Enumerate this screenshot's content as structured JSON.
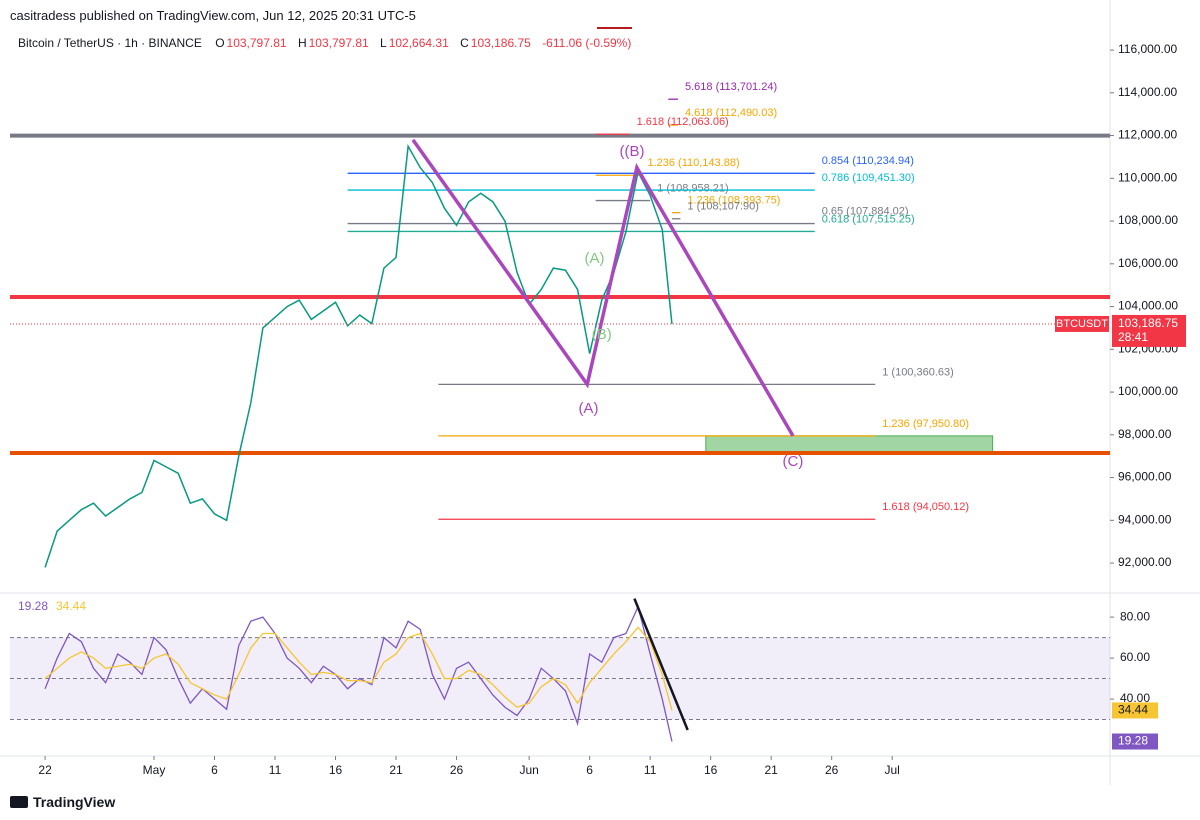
{
  "chart_data": [
    {
      "type": "line",
      "publisher": "casitradess published on TradingView.com, Jun 12, 2025 20:31 UTC-5",
      "title": "Bitcoin / TetherUS · 1h · BINANCE",
      "ohlc": [
        {
          "key": "O",
          "label": "103,797.81"
        },
        {
          "key": "H",
          "label": "103,797.81"
        },
        {
          "key": "L",
          "label": "102,664.31"
        },
        {
          "key": "C",
          "label": "103,186.75"
        }
      ],
      "change": "-611.06 (-0.59%)",
      "color": "#089981",
      "x": [
        0,
        1,
        2,
        3,
        4,
        5,
        6,
        7,
        8,
        9,
        10,
        11,
        12,
        13,
        14,
        15,
        16,
        17,
        18,
        19,
        20,
        21,
        22,
        23,
        24,
        25,
        26,
        27,
        28,
        29,
        30,
        31,
        32,
        33,
        34,
        35,
        36,
        37,
        38,
        39,
        40,
        41,
        42,
        43,
        44,
        45,
        46,
        47,
        48,
        49,
        50,
        51,
        51.8
      ],
      "values": [
        91800,
        93500,
        94000,
        94500,
        94800,
        94200,
        94600,
        95000,
        95300,
        96800,
        96500,
        96200,
        94800,
        95000,
        94300,
        94000,
        97000,
        99500,
        103000,
        103500,
        104000,
        104300,
        103400,
        103800,
        104200,
        103100,
        103600,
        103200,
        105800,
        106300,
        111500,
        110500,
        109800,
        108600,
        107800,
        108900,
        109300,
        108900,
        108000,
        105600,
        104100,
        104800,
        105800,
        105700,
        104800,
        101800,
        104300,
        105600,
        107500,
        110300,
        109200,
        107600,
        103186.75
      ],
      "xlim": [
        -2.9,
        88
      ],
      "xticks": [
        {
          "value": 0,
          "label": "22"
        },
        {
          "value": 9,
          "label": "May"
        },
        {
          "value": 14,
          "label": "6"
        },
        {
          "value": 19,
          "label": "11"
        },
        {
          "value": 24,
          "label": "16"
        },
        {
          "value": 29,
          "label": "21"
        },
        {
          "value": 34,
          "label": "26"
        },
        {
          "value": 40,
          "label": "Jun"
        },
        {
          "value": 45,
          "label": "6"
        },
        {
          "value": 50,
          "label": "11"
        },
        {
          "value": 55,
          "label": "16"
        },
        {
          "value": 60,
          "label": "21"
        },
        {
          "value": 65,
          "label": "26"
        },
        {
          "value": 70,
          "label": "Jul"
        }
      ],
      "ylim": [
        90740,
        117500
      ],
      "yticks": [
        {
          "value": 92000,
          "label": "92,000.00"
        },
        {
          "value": 94000,
          "label": "94,000.00"
        },
        {
          "value": 96000,
          "label": "96,000.00"
        },
        {
          "value": 98000,
          "label": "98,000.00"
        },
        {
          "value": 100000,
          "label": "100,000.00"
        },
        {
          "value": 102000,
          "label": "102,000.00"
        },
        {
          "value": 104000,
          "label": "104,000.00"
        },
        {
          "value": 106000,
          "label": "106,000.00"
        },
        {
          "value": 108000,
          "label": "108,000.00"
        },
        {
          "value": 110000,
          "label": "110,000.00"
        },
        {
          "value": 112000,
          "label": "112,000.00"
        },
        {
          "value": 114000,
          "label": "114,000.00"
        },
        {
          "value": 116000,
          "label": "116,000.00"
        }
      ],
      "last": {
        "value": 103186.75,
        "label": "103,186.75",
        "symbol": "BTCUSDT",
        "countdown": "28:41",
        "color": "#f23645"
      },
      "hlines": [
        {
          "value": 112000,
          "color": "#787b86",
          "width": 4
        },
        {
          "value": 104450,
          "color": "#f23645",
          "width": 4
        },
        {
          "value": 97150,
          "color": "#e65100",
          "width": 4
        }
      ],
      "levels": [
        {
          "label": "5.618 (113,701.24)",
          "value": 113701.24,
          "color": "#9c27b0",
          "x": [
            51.5,
            52.3
          ]
        },
        {
          "label": "4.618 (112,490.03)",
          "value": 112490.03,
          "color": "#f7a600",
          "x": [
            51.5,
            52.3
          ]
        },
        {
          "label": "1.618 (112,063.06)",
          "value": 112063.06,
          "color": "#f23645",
          "x": [
            45.5,
            48.3
          ]
        },
        {
          "label": "1.236 (110,143.88)",
          "value": 110143.88,
          "color": "#f7a600",
          "x": [
            45.5,
            49.2
          ]
        },
        {
          "label": "1 (108,958.21)",
          "value": 108958.21,
          "color": "#787b86",
          "x": [
            45.5,
            50.0
          ]
        },
        {
          "label": "1.236 (108,393.75)",
          "value": 108393.75,
          "color": "#f7a600",
          "x": [
            51.8,
            52.5
          ]
        },
        {
          "label": "1 (108,107.90)",
          "value": 108107.9,
          "color": "#787b86",
          "x": [
            51.8,
            52.5
          ]
        },
        {
          "label": "0.854 (110,234.94)",
          "value": 110234.94,
          "color": "#2962ff",
          "x": [
            25.0,
            63.6
          ]
        },
        {
          "label": "0.786 (109,451.30)",
          "value": 109451.3,
          "color": "#00bcd4",
          "x": [
            25.0,
            63.6
          ]
        },
        {
          "label": "0.65 (107,884.02)",
          "value": 107884.02,
          "color": "#787b86",
          "x": [
            25.0,
            63.6
          ]
        },
        {
          "label": "0.618 (107,515.25)",
          "value": 107515.25,
          "color": "#22ab94",
          "x": [
            25.0,
            63.6
          ]
        },
        {
          "label": "1 (100,360.63)",
          "value": 100360.63,
          "color": "#787b86",
          "x": [
            32.5,
            68.6
          ]
        },
        {
          "label": "1.236 (97,950.80)",
          "value": 97950.8,
          "color": "#f7a600",
          "x": [
            32.5,
            68.6
          ]
        },
        {
          "label": "1.618 (94,050.12)",
          "value": 94050.12,
          "color": "#f23645",
          "x": [
            32.5,
            68.6
          ]
        }
      ],
      "zone": {
        "x": [
          54.6,
          78.3
        ],
        "values": [
          97100,
          97950
        ],
        "color": "#81c784"
      },
      "wave": {
        "color": "#ab47bc",
        "x": [
          30.4,
          44.8,
          48.9,
          61.8
        ],
        "values": [
          111800,
          100360,
          110500,
          97950
        ]
      },
      "wave_labels": [
        {
          "label": "(A)",
          "x": 44.9,
          "value": 99205,
          "color": "#ab47bc"
        },
        {
          "label": "(C)",
          "x": 61.8,
          "value": 96725,
          "color": "#ab47bc"
        },
        {
          "label": "((B)",
          "x": 48.5,
          "value": 111230,
          "color": "#ab47bc"
        },
        {
          "label": "(A)",
          "x": 45.4,
          "value": 106220,
          "color": "#81c784"
        },
        {
          "label": "(B)",
          "x": 46.0,
          "value": 102660,
          "color": "#81c784"
        }
      ]
    },
    {
      "type": "line",
      "xlim": [
        -2.9,
        88
      ],
      "ylim": [
        12.7,
        89.8
      ],
      "yticks": [
        {
          "value": 40,
          "label": "40.00"
        },
        {
          "value": 60,
          "label": "60.00"
        },
        {
          "value": 80,
          "label": "80.00"
        }
      ],
      "band": [
        30,
        70
      ],
      "mid": 50,
      "x": [
        0,
        1,
        2,
        3,
        4,
        5,
        6,
        7,
        8,
        9,
        10,
        11,
        12,
        13,
        14,
        15,
        16,
        17,
        18,
        19,
        20,
        21,
        22,
        23,
        24,
        25,
        26,
        27,
        28,
        29,
        30,
        31,
        32,
        33,
        34,
        35,
        36,
        37,
        38,
        39,
        40,
        41,
        42,
        43,
        44,
        45,
        46,
        47,
        48,
        49,
        50,
        51,
        51.8
      ],
      "series": [
        {
          "color": "#7e57c2",
          "values": [
            45,
            60,
            72,
            68,
            55,
            48,
            62,
            58,
            52,
            70,
            64,
            50,
            38,
            45,
            40,
            35,
            66,
            78,
            80,
            72,
            60,
            55,
            48,
            56,
            52,
            45,
            50,
            47,
            70,
            65,
            78,
            74,
            52,
            40,
            55,
            58,
            50,
            42,
            36,
            32,
            40,
            55,
            50,
            44,
            28,
            62,
            58,
            70,
            72,
            85,
            62,
            40,
            19.28
          ]
        },
        {
          "color": "#f7c531",
          "values": [
            50,
            55,
            60,
            63,
            60,
            55,
            56,
            57,
            55,
            60,
            62,
            57,
            48,
            45,
            42,
            40,
            52,
            65,
            72,
            72,
            65,
            58,
            52,
            53,
            52,
            49,
            49,
            48,
            58,
            62,
            70,
            72,
            62,
            50,
            50,
            54,
            52,
            47,
            41,
            36,
            38,
            46,
            50,
            47,
            38,
            48,
            55,
            62,
            68,
            75,
            68,
            52,
            34.44
          ]
        }
      ],
      "trend": {
        "color": "#131722",
        "x": [
          48.7,
          53.1
        ],
        "values": [
          89,
          24.9
        ]
      }
    }
  ],
  "footer": "TradingView"
}
